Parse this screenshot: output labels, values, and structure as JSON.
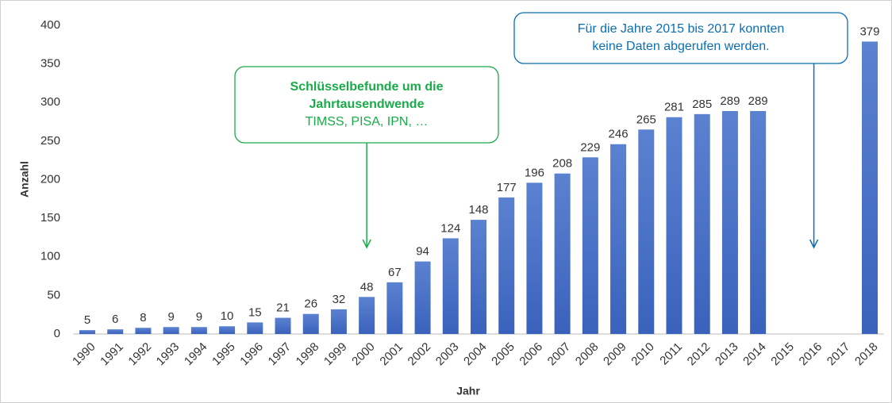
{
  "chart_data": {
    "type": "bar",
    "categories": [
      "1990",
      "1991",
      "1992",
      "1993",
      "1994",
      "1995",
      "1996",
      "1997",
      "1998",
      "1999",
      "2000",
      "2001",
      "2002",
      "2003",
      "2004",
      "2005",
      "2006",
      "2007",
      "2008",
      "2009",
      "2010",
      "2011",
      "2012",
      "2013",
      "2014",
      "2015",
      "2016",
      "2017",
      "2018"
    ],
    "values": [
      5,
      6,
      8,
      9,
      9,
      10,
      15,
      21,
      26,
      32,
      48,
      67,
      94,
      124,
      148,
      177,
      196,
      208,
      229,
      246,
      265,
      281,
      285,
      289,
      289,
      null,
      null,
      null,
      379
    ],
    "color": "#4a72c8",
    "ylim": [
      0,
      400
    ],
    "yticks": [
      0,
      50,
      100,
      150,
      200,
      250,
      300,
      350,
      400
    ],
    "grid": false,
    "xlabel": "Jahr",
    "ylabel": "Anzahl",
    "annotations": [
      {
        "lines": [
          "Schlüsselbefunde um die",
          "Jahrtausendwende",
          "TIMSS, PISA, IPN, …"
        ],
        "color": "#1aaa4a"
      },
      {
        "lines": [
          "Für die Jahre 2015 bis 2017 konnten",
          "keine Daten abgerufen werden."
        ],
        "color": "#0a6eb4"
      }
    ]
  }
}
